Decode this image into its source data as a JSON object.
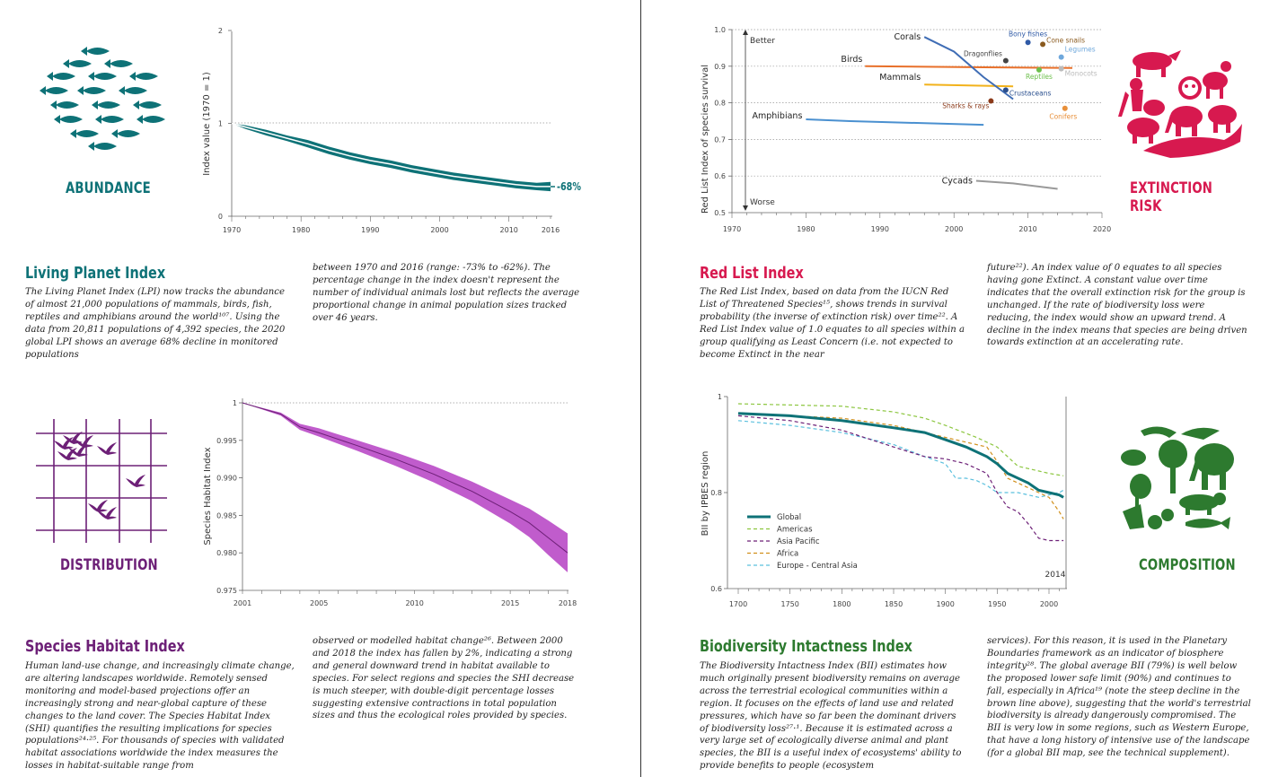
{
  "lpi": {
    "category": "ABUNDANCE",
    "title": "Living Planet Index",
    "text_col1": "The Living Planet Index (LPI) now tracks the abundance of almost 21,000 populations of mammals, birds, fish, reptiles and amphibians around the world¹⁰⁷. Using the data from 20,811 populations of 4,392 species, the 2020 global LPI shows an average 68% decline in monitored populations",
    "text_col2": "between 1970 and 2016 (range: -73% to -62%). The percentage change in the index doesn't represent the number of individual animals lost but reflects the average proportional change in animal population sizes tracked over 46 years.",
    "color": "#0e7277",
    "chart_data": {
      "type": "line",
      "ylabel": "Index value (1970 = 1)",
      "ylim": [
        0,
        2
      ],
      "yticks": [
        "0",
        "1",
        "2"
      ],
      "xticks": [
        "1970",
        "1980",
        "1990",
        "2000",
        "2010",
        "2016"
      ],
      "annotation": "-68%",
      "x": [
        1970,
        1972,
        1975,
        1978,
        1981,
        1984,
        1987,
        1990,
        1993,
        1996,
        1999,
        2002,
        2005,
        2008,
        2011,
        2014,
        2016
      ],
      "values": [
        1.0,
        0.96,
        0.9,
        0.84,
        0.78,
        0.71,
        0.65,
        0.6,
        0.56,
        0.51,
        0.47,
        0.43,
        0.4,
        0.37,
        0.34,
        0.32,
        0.32
      ],
      "upper": [
        1.0,
        0.98,
        0.93,
        0.87,
        0.82,
        0.75,
        0.69,
        0.64,
        0.6,
        0.55,
        0.51,
        0.47,
        0.44,
        0.41,
        0.38,
        0.36,
        0.37
      ],
      "lower": [
        1.0,
        0.94,
        0.87,
        0.81,
        0.74,
        0.67,
        0.61,
        0.56,
        0.52,
        0.47,
        0.43,
        0.39,
        0.36,
        0.33,
        0.3,
        0.28,
        0.27
      ]
    }
  },
  "rli": {
    "category": "EXTINCTION RISK",
    "title": "Red List Index",
    "text_col1": "The Red List Index, based on data from the IUCN Red List of Threatened Species¹⁵, shows trends in survival probability (the inverse of extinction risk) over time²². A Red List Index value of 1.0 equates to all species within a group qualifying as Least Concern (i.e. not expected to become Extinct in the near",
    "text_col2": "future²²). An index value of 0 equates to all species having gone Extinct. A constant value over time indicates that the overall extinction risk for the group is unchanged. If the rate of biodiversity loss were reducing, the index would show an upward trend. A decline in the index means that species are being driven towards extinction at an accelerating rate.",
    "color": "#d7194f",
    "chart_data": {
      "type": "line",
      "ylabel": "Red List Index of species survival",
      "ylim": [
        0.5,
        1.0
      ],
      "xlim": [
        1970,
        2020
      ],
      "yticks": [
        "1.0",
        "0.9",
        "0.8",
        "0.7",
        "0.6",
        "0.5"
      ],
      "xticks": [
        "1970",
        "1980",
        "1990",
        "2000",
        "2010",
        "2020"
      ],
      "better_label": "Better",
      "worse_label": "Worse",
      "series": [
        {
          "name": "Birds",
          "color": "#e8702a",
          "x": [
            1988,
            2004,
            2016
          ],
          "y": [
            0.9,
            0.897,
            0.895
          ]
        },
        {
          "name": "Mammals",
          "color": "#f2b21b",
          "x": [
            1996,
            2008
          ],
          "y": [
            0.85,
            0.845
          ]
        },
        {
          "name": "Amphibians",
          "color": "#4a90d0",
          "x": [
            1980,
            1986,
            2004
          ],
          "y": [
            0.755,
            0.75,
            0.74
          ]
        },
        {
          "name": "Corals",
          "color": "#3f6db5",
          "x": [
            1996,
            2000,
            2004,
            2008
          ],
          "y": [
            0.98,
            0.94,
            0.87,
            0.81
          ]
        },
        {
          "name": "Cycads",
          "color": "#999999",
          "x": [
            2003,
            2008,
            2014
          ],
          "y": [
            0.587,
            0.58,
            0.565
          ]
        }
      ],
      "points": [
        {
          "name": "Bony fishes",
          "color": "#2f5aa6",
          "x": 2010,
          "y": 0.965
        },
        {
          "name": "Cone snails",
          "color": "#8a5a1e",
          "x": 2012,
          "y": 0.96
        },
        {
          "name": "Legumes",
          "color": "#6fa8dc",
          "x": 2014.5,
          "y": 0.925
        },
        {
          "name": "Dragonflies",
          "color": "#444444",
          "x": 2007,
          "y": 0.915
        },
        {
          "name": "Reptiles",
          "color": "#6cbf4b",
          "x": 2011.5,
          "y": 0.89
        },
        {
          "name": "Monocots",
          "color": "#bbbbbb",
          "x": 2014.5,
          "y": 0.893
        },
        {
          "name": "Crustaceans",
          "color": "#2a4f8e",
          "x": 2007,
          "y": 0.835
        },
        {
          "name": "Sharks & rays",
          "color": "#8b3a1a",
          "x": 2005,
          "y": 0.805
        },
        {
          "name": "Conifers",
          "color": "#e8903a",
          "x": 2015,
          "y": 0.785
        }
      ]
    }
  },
  "shi": {
    "category": "DISTRIBUTION",
    "title": "Species Habitat Index",
    "text_col1": "Human land-use change, and increasingly climate change, are altering landscapes worldwide. Remotely sensed monitoring and model-based projections offer an increasingly strong and near-global capture of these changes to the land cover. The Species Habitat Index (SHI) quantifies the resulting implications for species populations²⁴·²⁵. For thousands of species with validated habitat associations worldwide the index measures the losses in habitat-suitable range from",
    "text_col2": "observed or modelled habitat change²⁶. Between 2000 and 2018 the index has fallen by 2%, indicating a strong and general downward trend in habitat available to species. For select regions and species the SHI decrease is much steeper, with double-digit percentage losses suggesting extensive contractions in total population sizes and thus the ecological roles provided by species.",
    "color": "#6d2077",
    "chart_data": {
      "type": "area",
      "ylabel": "Species Habitat Index",
      "ylim": [
        0.975,
        1.0
      ],
      "xlim": [
        2001,
        2018
      ],
      "yticks": [
        "1",
        "0.995",
        "0.990",
        "0.985",
        "0.980",
        "0.975"
      ],
      "xticks": [
        "2001",
        "2005",
        "2010",
        "2015",
        "2018"
      ],
      "x": [
        2001,
        2003,
        2004,
        2005,
        2007,
        2009,
        2011,
        2013,
        2015,
        2016,
        2017,
        2018
      ],
      "values": [
        1.0,
        0.9985,
        0.9968,
        0.996,
        0.9943,
        0.9925,
        0.9905,
        0.9882,
        0.9855,
        0.984,
        0.982,
        0.98
      ],
      "upper": [
        1.0,
        0.9987,
        0.9972,
        0.9966,
        0.995,
        0.9934,
        0.9916,
        0.9895,
        0.9871,
        0.9859,
        0.9843,
        0.9826
      ],
      "lower": [
        1.0,
        0.9983,
        0.9964,
        0.9955,
        0.9936,
        0.9916,
        0.9894,
        0.9869,
        0.9839,
        0.9821,
        0.9797,
        0.9774
      ]
    }
  },
  "bii": {
    "category": "COMPOSITION",
    "title": "Biodiversity Intactness Index",
    "text_col1": "The Biodiversity Intactness Index (BII) estimates how much originally present biodiversity remains on average across the terrestrial ecological communities within a region. It focuses on the effects of land use and related pressures, which have so far been the dominant drivers of biodiversity loss²⁷·¹. Because it is estimated across a very large set of ecologically diverse animal and plant species, the BII is a useful index of ecosystems' ability to provide benefits to people (ecosystem",
    "text_col2": "services). For this reason, it is used in the Planetary Boundaries framework as an indicator of biosphere integrity²⁸. The global average BII (79%) is well below the proposed lower safe limit (90%) and continues to fall, especially in Africa¹⁹ (note the steep decline in the brown line above), suggesting that the world's terrestrial biodiversity is already dangerously compromised. The BII is very low in some regions, such as Western Europe, that have a long history of intensive use of the landscape (for a global BII map, see the technical supplement).",
    "color": "#2d7a2f",
    "chart_data": {
      "type": "line",
      "ylabel": "BII by IPBES region",
      "ylim": [
        0.6,
        1.0
      ],
      "xlim": [
        1700,
        2014
      ],
      "yticks": [
        "1",
        "0.8",
        "0.6"
      ],
      "xticks": [
        "1700",
        "1750",
        "1800",
        "1850",
        "1900",
        "1950",
        "2000"
      ],
      "end_label": "2014",
      "series": [
        {
          "name": "Global",
          "color": "#0e7277",
          "dash": "",
          "width": 3,
          "x": [
            1700,
            1750,
            1800,
            1850,
            1880,
            1900,
            1920,
            1940,
            1950,
            1960,
            1980,
            1990,
            2000,
            2010,
            2014
          ],
          "y": [
            0.965,
            0.96,
            0.95,
            0.935,
            0.925,
            0.91,
            0.895,
            0.875,
            0.86,
            0.84,
            0.82,
            0.805,
            0.8,
            0.795,
            0.79
          ]
        },
        {
          "name": "Americas",
          "color": "#8cc63f",
          "dash": "4,3",
          "width": 1.2,
          "x": [
            1700,
            1800,
            1850,
            1880,
            1900,
            1930,
            1950,
            1970,
            2000,
            2014
          ],
          "y": [
            0.985,
            0.98,
            0.968,
            0.955,
            0.94,
            0.915,
            0.895,
            0.855,
            0.84,
            0.835
          ]
        },
        {
          "name": "Asia Pacific",
          "color": "#6d2077",
          "dash": "4,3",
          "width": 1.2,
          "x": [
            1700,
            1750,
            1800,
            1850,
            1880,
            1900,
            1920,
            1940,
            1950,
            1960,
            1970,
            1980,
            1990,
            2000,
            2014
          ],
          "y": [
            0.96,
            0.95,
            0.93,
            0.895,
            0.875,
            0.87,
            0.86,
            0.84,
            0.8,
            0.77,
            0.76,
            0.735,
            0.705,
            0.7,
            0.7
          ]
        },
        {
          "name": "Africa",
          "color": "#d1901c",
          "dash": "4,3",
          "width": 1.2,
          "x": [
            1700,
            1800,
            1850,
            1880,
            1900,
            1920,
            1940,
            1950,
            1960,
            1970,
            1980,
            1990,
            2000,
            2010,
            2014
          ],
          "y": [
            0.965,
            0.955,
            0.94,
            0.925,
            0.915,
            0.905,
            0.895,
            0.865,
            0.83,
            0.82,
            0.81,
            0.8,
            0.79,
            0.76,
            0.745
          ]
        },
        {
          "name": "Europe - Central Asia",
          "color": "#5bc0de",
          "dash": "4,3",
          "width": 1.2,
          "x": [
            1700,
            1750,
            1800,
            1850,
            1880,
            1900,
            1910,
            1920,
            1930,
            1940,
            1950,
            1970,
            1990,
            2010,
            2014
          ],
          "y": [
            0.95,
            0.94,
            0.925,
            0.9,
            0.875,
            0.86,
            0.83,
            0.83,
            0.825,
            0.815,
            0.8,
            0.8,
            0.79,
            0.8,
            0.805
          ]
        }
      ]
    }
  }
}
